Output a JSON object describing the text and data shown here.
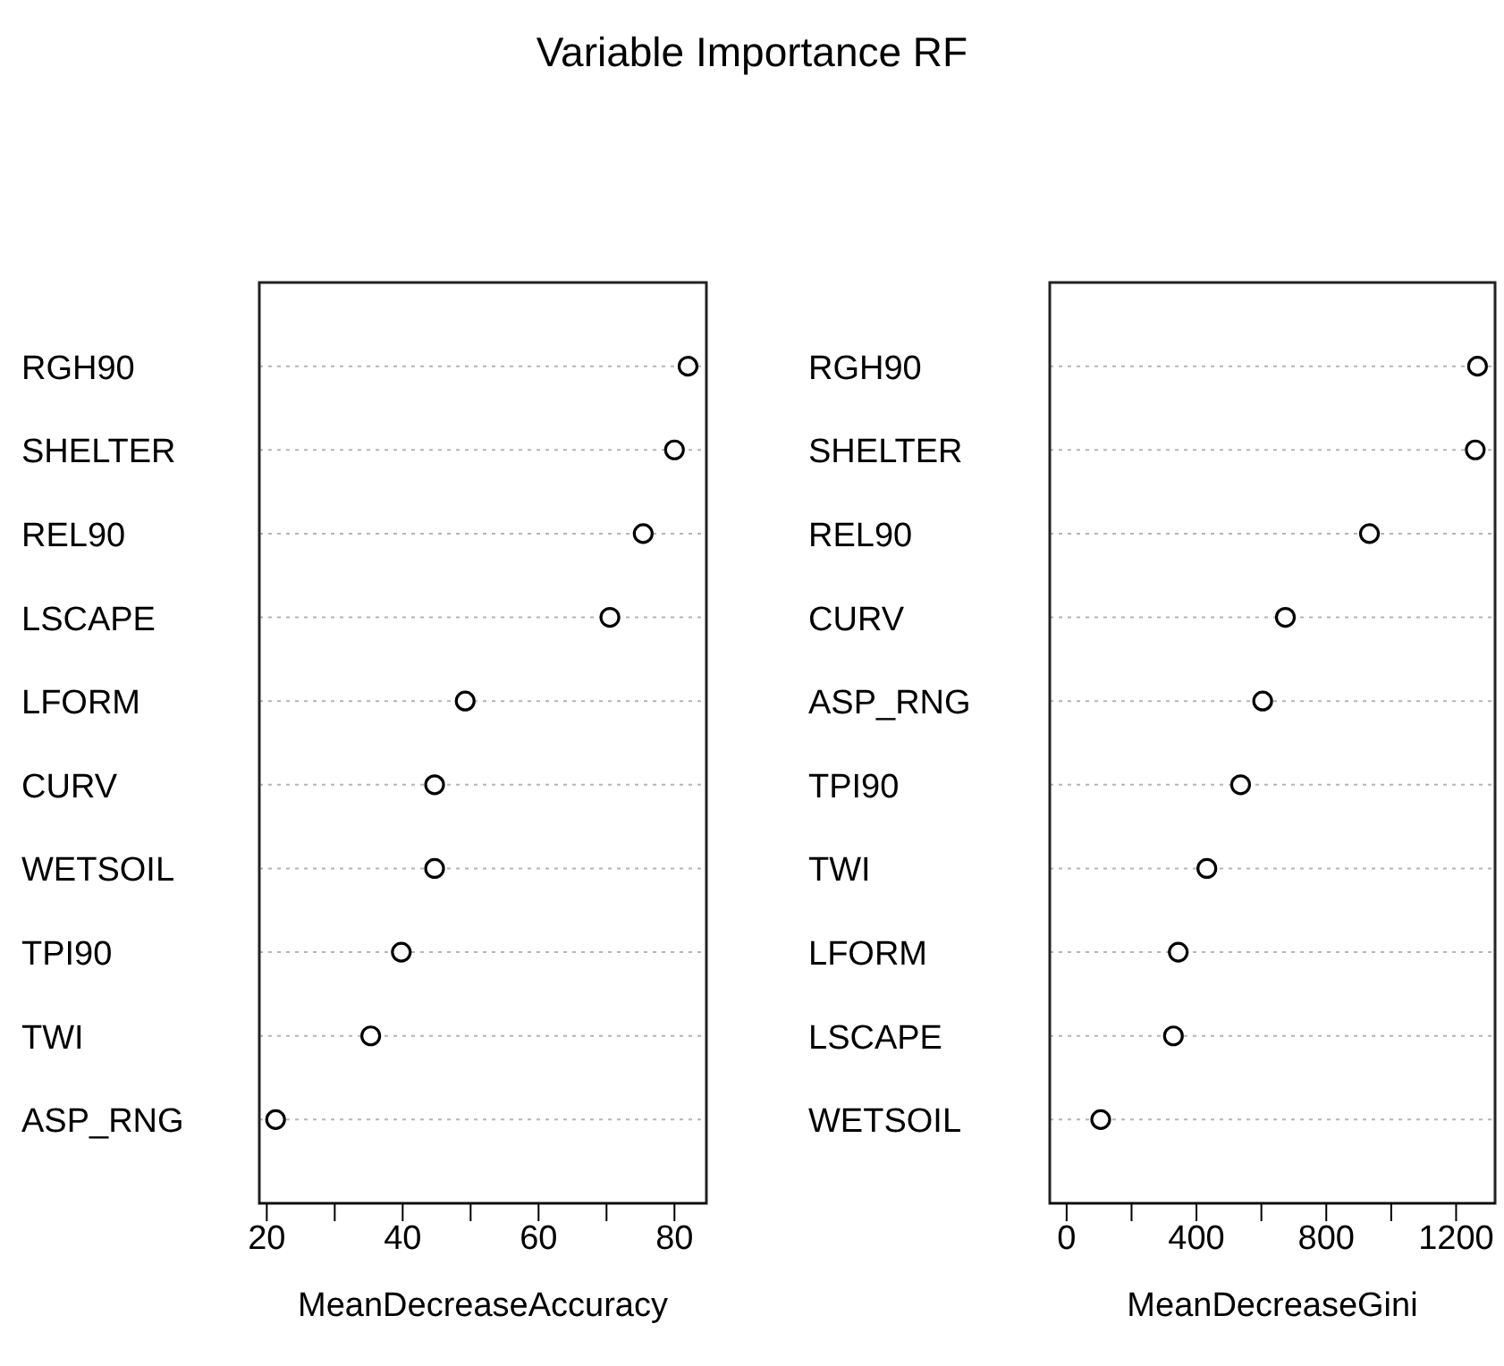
{
  "chart_data": [
    {
      "type": "scatter",
      "orientation": "horizontal",
      "title": "Variable Importance RF",
      "xlabel": "MeanDecreaseAccuracy",
      "categories": [
        "RGH90",
        "SHELTER",
        "REL90",
        "LSCAPE",
        "LFORM",
        "CURV",
        "WETSOIL",
        "TPI90",
        "TWI",
        "ASP_RNG"
      ],
      "values": [
        82.0,
        80.0,
        75.4,
        70.5,
        49.2,
        44.7,
        44.7,
        39.8,
        35.3,
        21.3
      ],
      "color": "#000000",
      "marker": "circle",
      "grid": "y",
      "xlim": [
        18.9,
        84.7
      ],
      "xticks": [
        20,
        {
          "value": 30,
          "label": null
        },
        40,
        {
          "value": 50,
          "label": null
        },
        60,
        {
          "value": 70,
          "label": null
        },
        80
      ]
    },
    {
      "type": "scatter",
      "orientation": "horizontal",
      "xlabel": "MeanDecreaseGini",
      "categories": [
        "RGH90",
        "SHELTER",
        "REL90",
        "CURV",
        "ASP_RNG",
        "TPI90",
        "TWI",
        "LFORM",
        "LSCAPE",
        "WETSOIL"
      ],
      "values": [
        1266,
        1259,
        933,
        674,
        604,
        536,
        432,
        344,
        329,
        105
      ],
      "color": "#000000",
      "marker": "circle",
      "grid": "y",
      "xlim": [
        -52,
        1320
      ],
      "xticks": [
        0,
        {
          "value": 200,
          "label": null
        },
        400,
        {
          "value": 600,
          "label": null
        },
        800,
        {
          "value": 1000,
          "label": null
        },
        1200
      ]
    }
  ]
}
